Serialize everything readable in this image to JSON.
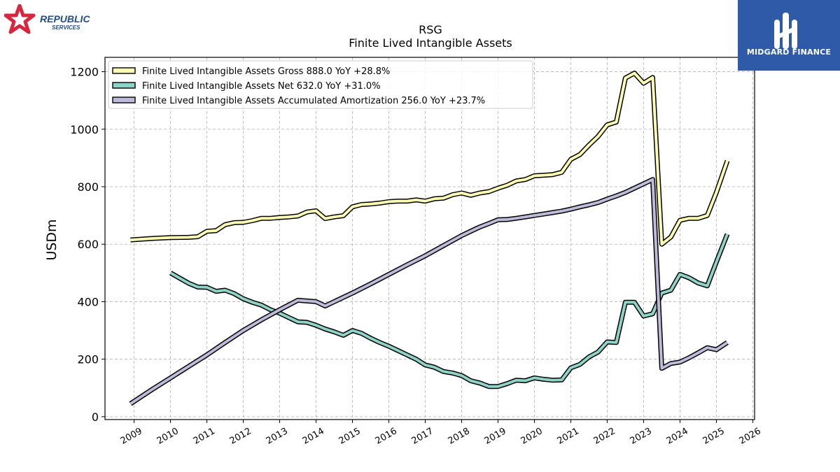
{
  "branding": {
    "left_logo_line1": "REPUBLIC",
    "left_logo_line2": "SERVICES",
    "right_logo_text": "MIDGARD FINANCE",
    "left_logo_color": "#d7263d",
    "left_logo_text_color": "#1f4e8c",
    "right_logo_bg": "#2f5aa8"
  },
  "chart_data": {
    "type": "line",
    "title": "RSG",
    "subtitle": "Finite Lived Intangible Assets",
    "ylabel": "USDm",
    "xlabel": "",
    "xlim": [
      2008.2,
      2026.05
    ],
    "ylim": [
      -10,
      1250
    ],
    "yticks": [
      0,
      200,
      400,
      600,
      800,
      1000,
      1200
    ],
    "xticks": [
      "2009",
      "2010",
      "2011",
      "2012",
      "2013",
      "2014",
      "2015",
      "2016",
      "2017",
      "2018",
      "2019",
      "2020",
      "2021",
      "2022",
      "2023",
      "2024",
      "2025",
      "2026"
    ],
    "grid": true,
    "legend_position": "top-left",
    "series": [
      {
        "name": "Finite Lived Intangible Assets Gross  888.0 YoY +28.8%",
        "color": "#ffffb3",
        "points": [
          [
            2008.9,
            615
          ],
          [
            2009.5,
            620
          ],
          [
            2010.0,
            623
          ],
          [
            2010.5,
            624
          ],
          [
            2010.75,
            626
          ],
          [
            2011.0,
            645
          ],
          [
            2011.25,
            647
          ],
          [
            2011.5,
            668
          ],
          [
            2011.75,
            675
          ],
          [
            2012.0,
            676
          ],
          [
            2012.25,
            682
          ],
          [
            2012.5,
            690
          ],
          [
            2012.75,
            690
          ],
          [
            2013.0,
            693
          ],
          [
            2013.25,
            695
          ],
          [
            2013.5,
            698
          ],
          [
            2013.75,
            712
          ],
          [
            2014.0,
            716
          ],
          [
            2014.25,
            689
          ],
          [
            2014.5,
            695
          ],
          [
            2014.75,
            699
          ],
          [
            2015.0,
            730
          ],
          [
            2015.25,
            738
          ],
          [
            2015.5,
            740
          ],
          [
            2015.75,
            743
          ],
          [
            2016.0,
            748
          ],
          [
            2016.25,
            750
          ],
          [
            2016.5,
            750
          ],
          [
            2016.75,
            754
          ],
          [
            2017.0,
            750
          ],
          [
            2017.25,
            758
          ],
          [
            2017.5,
            760
          ],
          [
            2017.75,
            772
          ],
          [
            2018.0,
            778
          ],
          [
            2018.25,
            770
          ],
          [
            2018.5,
            778
          ],
          [
            2018.75,
            783
          ],
          [
            2019.0,
            795
          ],
          [
            2019.25,
            805
          ],
          [
            2019.5,
            820
          ],
          [
            2019.75,
            825
          ],
          [
            2020.0,
            838
          ],
          [
            2020.25,
            840
          ],
          [
            2020.5,
            842
          ],
          [
            2020.75,
            850
          ],
          [
            2021.0,
            895
          ],
          [
            2021.25,
            912
          ],
          [
            2021.5,
            945
          ],
          [
            2021.75,
            975
          ],
          [
            2022.0,
            1015
          ],
          [
            2022.25,
            1025
          ],
          [
            2022.5,
            1178
          ],
          [
            2022.75,
            1195
          ],
          [
            2023.0,
            1160
          ],
          [
            2023.25,
            1180
          ],
          [
            2023.5,
            600
          ],
          [
            2023.75,
            625
          ],
          [
            2024.0,
            683
          ],
          [
            2024.25,
            690
          ],
          [
            2024.5,
            690
          ],
          [
            2024.75,
            700
          ],
          [
            2025.0,
            780
          ],
          [
            2025.3,
            890
          ]
        ]
      },
      {
        "name": "Finite Lived Intangible Assets Net  632.0 YoY +31.0%",
        "color": "#8dd3c7",
        "points": [
          [
            2010.0,
            500
          ],
          [
            2010.25,
            482
          ],
          [
            2010.5,
            464
          ],
          [
            2010.75,
            451
          ],
          [
            2011.0,
            450
          ],
          [
            2011.25,
            436
          ],
          [
            2011.5,
            440
          ],
          [
            2011.75,
            428
          ],
          [
            2012.0,
            410
          ],
          [
            2012.25,
            398
          ],
          [
            2012.5,
            388
          ],
          [
            2012.75,
            372
          ],
          [
            2013.0,
            360
          ],
          [
            2013.25,
            345
          ],
          [
            2013.5,
            330
          ],
          [
            2013.75,
            328
          ],
          [
            2014.0,
            318
          ],
          [
            2014.25,
            305
          ],
          [
            2014.5,
            295
          ],
          [
            2014.75,
            283
          ],
          [
            2015.0,
            300
          ],
          [
            2015.25,
            290
          ],
          [
            2015.5,
            273
          ],
          [
            2015.75,
            258
          ],
          [
            2016.0,
            245
          ],
          [
            2016.25,
            230
          ],
          [
            2016.5,
            215
          ],
          [
            2016.75,
            200
          ],
          [
            2017.0,
            180
          ],
          [
            2017.25,
            172
          ],
          [
            2017.5,
            157
          ],
          [
            2017.75,
            152
          ],
          [
            2018.0,
            143
          ],
          [
            2018.25,
            125
          ],
          [
            2018.5,
            117
          ],
          [
            2018.75,
            105
          ],
          [
            2019.0,
            105
          ],
          [
            2019.25,
            115
          ],
          [
            2019.5,
            127
          ],
          [
            2019.75,
            125
          ],
          [
            2020.0,
            135
          ],
          [
            2020.25,
            130
          ],
          [
            2020.5,
            127
          ],
          [
            2020.75,
            128
          ],
          [
            2021.0,
            170
          ],
          [
            2021.25,
            182
          ],
          [
            2021.5,
            208
          ],
          [
            2021.75,
            225
          ],
          [
            2022.0,
            260
          ],
          [
            2022.25,
            258
          ],
          [
            2022.5,
            398
          ],
          [
            2022.75,
            398
          ],
          [
            2023.0,
            350
          ],
          [
            2023.25,
            358
          ],
          [
            2023.5,
            430
          ],
          [
            2023.75,
            440
          ],
          [
            2024.0,
            495
          ],
          [
            2024.25,
            483
          ],
          [
            2024.5,
            465
          ],
          [
            2024.75,
            455
          ],
          [
            2025.0,
            538
          ],
          [
            2025.3,
            635
          ]
        ]
      },
      {
        "name": "Finite Lived Intangible Assets Accumulated Amortization  256.0 YoY +23.7%",
        "color": "#bebada",
        "points": [
          [
            2008.9,
            45
          ],
          [
            2009.5,
            95
          ],
          [
            2010.0,
            135
          ],
          [
            2010.5,
            175
          ],
          [
            2011.0,
            215
          ],
          [
            2011.5,
            258
          ],
          [
            2012.0,
            300
          ],
          [
            2012.5,
            337
          ],
          [
            2013.0,
            372
          ],
          [
            2013.5,
            405
          ],
          [
            2014.0,
            400
          ],
          [
            2014.25,
            385
          ],
          [
            2014.5,
            400
          ],
          [
            2015.0,
            430
          ],
          [
            2015.5,
            462
          ],
          [
            2016.0,
            495
          ],
          [
            2016.5,
            528
          ],
          [
            2017.0,
            560
          ],
          [
            2017.5,
            595
          ],
          [
            2018.0,
            630
          ],
          [
            2018.25,
            645
          ],
          [
            2018.5,
            660
          ],
          [
            2018.75,
            672
          ],
          [
            2019.0,
            685
          ],
          [
            2019.25,
            686
          ],
          [
            2019.5,
            690
          ],
          [
            2019.75,
            695
          ],
          [
            2020.0,
            700
          ],
          [
            2020.25,
            705
          ],
          [
            2020.5,
            710
          ],
          [
            2020.75,
            715
          ],
          [
            2021.0,
            722
          ],
          [
            2021.25,
            730
          ],
          [
            2021.5,
            737
          ],
          [
            2021.75,
            745
          ],
          [
            2022.0,
            757
          ],
          [
            2022.25,
            768
          ],
          [
            2022.5,
            780
          ],
          [
            2022.75,
            795
          ],
          [
            2023.0,
            810
          ],
          [
            2023.25,
            825
          ],
          [
            2023.5,
            168
          ],
          [
            2023.75,
            185
          ],
          [
            2024.0,
            190
          ],
          [
            2024.25,
            205
          ],
          [
            2024.5,
            222
          ],
          [
            2024.75,
            240
          ],
          [
            2025.0,
            233
          ],
          [
            2025.3,
            258
          ]
        ]
      }
    ]
  }
}
